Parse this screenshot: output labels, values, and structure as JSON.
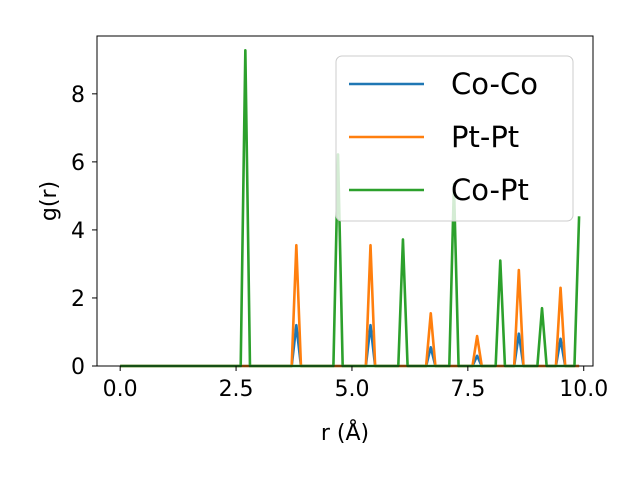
{
  "chart_data": {
    "type": "line",
    "xlabel": "r (Å)",
    "ylabel": "g(r)",
    "xlim": [
      -0.5,
      10.2
    ],
    "ylim": [
      0,
      9.7
    ],
    "x_ticks": [
      0.0,
      2.5,
      5.0,
      7.5,
      10.0
    ],
    "x_tick_labels": [
      "0.0",
      "2.5",
      "5.0",
      "7.5",
      "10.0"
    ],
    "y_ticks": [
      0,
      2,
      4,
      6,
      8
    ],
    "y_tick_labels": [
      "0",
      "2",
      "4",
      "6",
      "8"
    ],
    "legend_position": "top-right",
    "bin_width": 0.1,
    "x_range": [
      0.0,
      9.9
    ],
    "grid": false,
    "series": [
      {
        "name": "Co-Co",
        "color": "#1f77b4",
        "peaks": [
          {
            "x": 3.8,
            "y": 1.2
          },
          {
            "x": 5.4,
            "y": 1.2
          },
          {
            "x": 6.7,
            "y": 0.55
          },
          {
            "x": 7.7,
            "y": 0.3
          },
          {
            "x": 8.6,
            "y": 0.95
          },
          {
            "x": 9.5,
            "y": 0.8
          }
        ]
      },
      {
        "name": "Pt-Pt",
        "color": "#ff7f0e",
        "peaks": [
          {
            "x": 3.8,
            "y": 3.55
          },
          {
            "x": 5.4,
            "y": 3.55
          },
          {
            "x": 6.7,
            "y": 1.55
          },
          {
            "x": 7.7,
            "y": 0.88
          },
          {
            "x": 8.6,
            "y": 2.82
          },
          {
            "x": 9.5,
            "y": 2.3
          }
        ]
      },
      {
        "name": "Co-Pt",
        "color": "#2ca02c",
        "peaks": [
          {
            "x": 2.7,
            "y": 9.28
          },
          {
            "x": 4.7,
            "y": 6.22
          },
          {
            "x": 6.1,
            "y": 3.72
          },
          {
            "x": 7.2,
            "y": 5.35
          },
          {
            "x": 8.2,
            "y": 3.1
          },
          {
            "x": 9.1,
            "y": 1.7
          },
          {
            "x": 9.9,
            "y": 4.4
          }
        ]
      }
    ]
  }
}
